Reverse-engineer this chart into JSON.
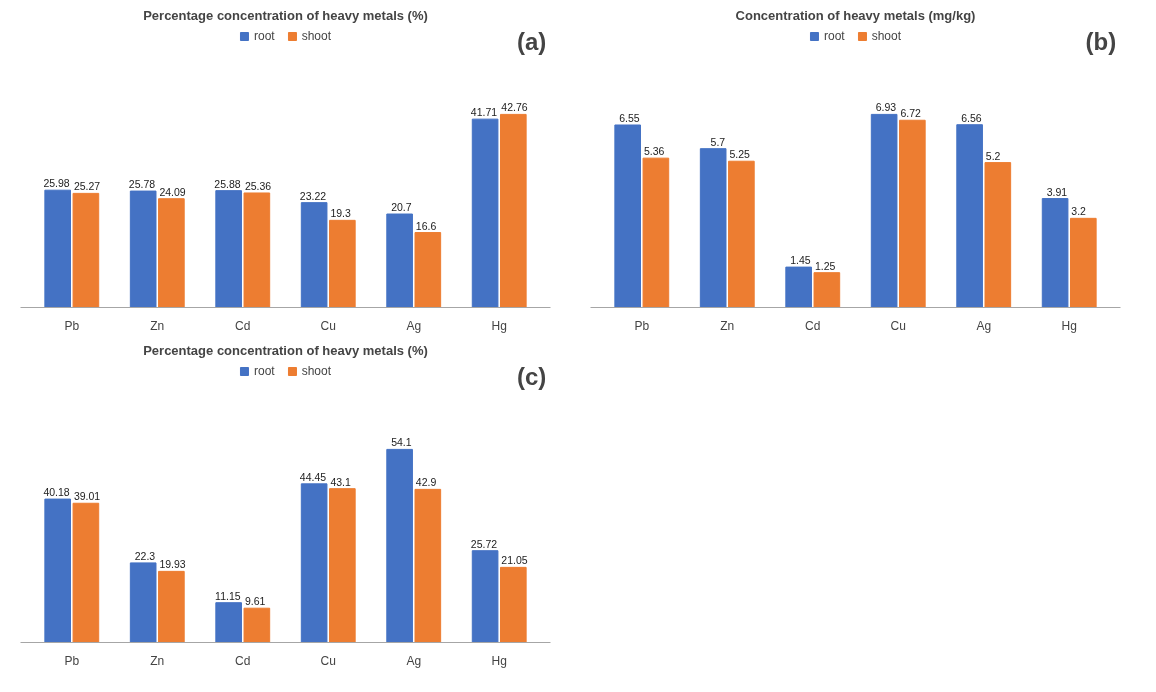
{
  "chart_data": [
    {
      "type": "bar",
      "title": "Percentage concentration of heavy metals (%)",
      "annotations": [
        "(a)"
      ],
      "categories": [
        "Pb",
        "Zn",
        "Cd",
        "Cu",
        "Ag",
        "Hg"
      ],
      "legend": "top",
      "grid": false,
      "data_labels": true,
      "series": [
        {
          "name": "root",
          "color": "#4472c4",
          "values": [
            25.98,
            25.78,
            25.88,
            23.22,
            20.7,
            41.71
          ]
        },
        {
          "name": "shoot",
          "color": "#ed7d31",
          "values": [
            25.27,
            24.09,
            25.36,
            19.3,
            16.6,
            42.76
          ]
        }
      ]
    },
    {
      "type": "bar",
      "title": "Concentration of heavy metals (mg/kg)",
      "annotations": [
        "(b)"
      ],
      "categories": [
        "Pb",
        "Zn",
        "Cd",
        "Cu",
        "Ag",
        "Hg"
      ],
      "legend": "top",
      "grid": false,
      "data_labels": true,
      "series": [
        {
          "name": "root",
          "color": "#4472c4",
          "values": [
            6.55,
            5.7,
            1.45,
            6.93,
            6.56,
            3.91
          ]
        },
        {
          "name": "shoot",
          "color": "#ed7d31",
          "values": [
            5.36,
            5.25,
            1.25,
            6.72,
            5.2,
            3.2
          ]
        }
      ]
    },
    {
      "type": "bar",
      "title": "Percentage concentration of heavy metals (%)",
      "annotations": [
        "(c)"
      ],
      "categories": [
        "Pb",
        "Zn",
        "Cd",
        "Cu",
        "Ag",
        "Hg"
      ],
      "legend": "top",
      "grid": false,
      "data_labels": true,
      "series": [
        {
          "name": "root",
          "color": "#4472c4",
          "values": [
            40.18,
            22.3,
            11.15,
            44.45,
            54.1,
            25.72
          ]
        },
        {
          "name": "shoot",
          "color": "#ed7d31",
          "values": [
            39.01,
            19.93,
            9.61,
            43.1,
            42.9,
            21.05
          ]
        }
      ]
    }
  ]
}
